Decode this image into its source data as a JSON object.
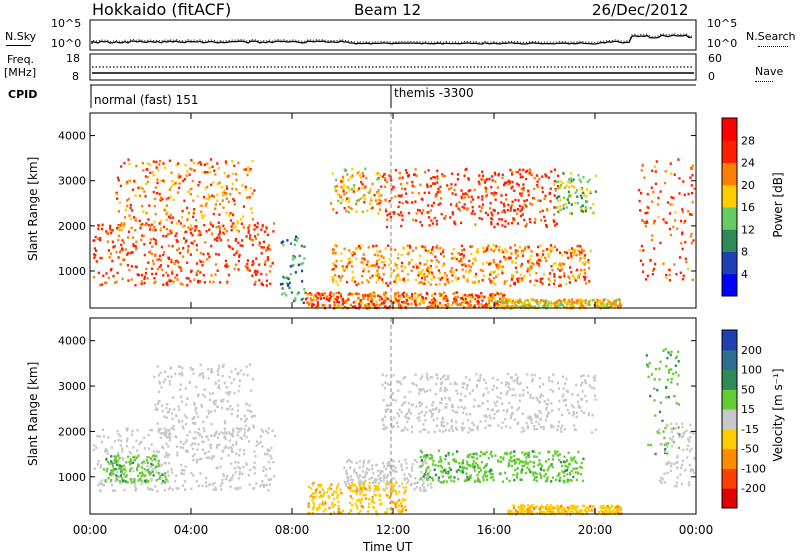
{
  "header": {
    "station": "Hokkaido (fitACF)",
    "beam": "Beam 12",
    "date": "26/Dec/2012"
  },
  "noise_panel": {
    "left_label": "N.Sky",
    "right_label": "N.Search",
    "left_ticks": [
      "10^5",
      "10^0"
    ],
    "right_ticks": [
      "10^5",
      "10^0"
    ]
  },
  "freq_panel": {
    "left_label_line1": "Freq.",
    "left_label_line2": "[MHz]",
    "left_ticks": [
      "18",
      "8"
    ],
    "right_label": "Nave",
    "right_ticks": [
      "60",
      "0"
    ]
  },
  "cpid_panel": {
    "label": "CPID",
    "modes": [
      {
        "text": "normal (fast) 151",
        "start_hour": 0
      },
      {
        "text": "themis -3300",
        "start_hour": 12
      }
    ]
  },
  "power_panel": {
    "ylabel": "Slant Range [km]",
    "yticks": [
      "1000",
      "2000",
      "3000",
      "4000"
    ],
    "colorbar_label": "Power [dB]",
    "colorbar_ticks": [
      "4",
      "8",
      "12",
      "16",
      "20",
      "24",
      "28"
    ],
    "colors": [
      "#0000ff",
      "#1f3fb4",
      "#2e8b57",
      "#66cc66",
      "#ffcc00",
      "#ff8000",
      "#ff2000"
    ]
  },
  "velocity_panel": {
    "ylabel": "Slant Range [km]",
    "yticks": [
      "1000",
      "2000",
      "3000",
      "4000"
    ],
    "colorbar_label": "Velocity [m s⁻¹]",
    "colorbar_ticks": [
      "200",
      "100",
      "50",
      "15",
      "-15",
      "-50",
      "-100",
      "-200"
    ],
    "colors": [
      "#1f3fb4",
      "#2e6e8e",
      "#2e8b57",
      "#66cc33",
      "#c8c8c8",
      "#ffcc00",
      "#ff8c00",
      "#ff4000",
      "#e00000"
    ]
  },
  "x_axis": {
    "ticks": [
      "00:00",
      "04:00",
      "08:00",
      "12:00",
      "16:00",
      "20:00",
      "00:00"
    ],
    "xlabel": "Time UT"
  },
  "chart_data": {
    "type": "heatmap",
    "x_range_hours": [
      0,
      24
    ],
    "y_range_km": [
      180,
      4500
    ],
    "mode_change_hour": 12,
    "power_regions": [
      {
        "t0": 0.1,
        "t1": 7.3,
        "r0": 700,
        "r1": 2100,
        "db": 26
      },
      {
        "t0": 1.0,
        "t1": 6.5,
        "r0": 1900,
        "r1": 3500,
        "db": 22
      },
      {
        "t0": 7.5,
        "t1": 8.5,
        "r0": 300,
        "r1": 1800,
        "db": 10
      },
      {
        "t0": 9.5,
        "t1": 11.5,
        "r0": 2300,
        "r1": 3300,
        "db": 20
      },
      {
        "t0": 11.5,
        "t1": 18.5,
        "r0": 2000,
        "r1": 3300,
        "db": 27
      },
      {
        "t0": 18.3,
        "t1": 20.0,
        "r0": 2300,
        "r1": 3200,
        "db": 14
      },
      {
        "t0": 9.5,
        "t1": 19.8,
        "r0": 700,
        "r1": 1600,
        "db": 22
      },
      {
        "t0": 8.5,
        "t1": 16.5,
        "r0": 200,
        "r1": 550,
        "db": 24
      },
      {
        "t0": 21.7,
        "t1": 23.9,
        "r0": 800,
        "r1": 3500,
        "db": 25
      },
      {
        "t0": 16.0,
        "t1": 21.0,
        "r0": 200,
        "r1": 400,
        "db": 18
      }
    ],
    "velocity_regions": [
      {
        "t0": 0.1,
        "t1": 7.3,
        "r0": 700,
        "r1": 2100,
        "v": 0
      },
      {
        "t0": 2.5,
        "t1": 6.5,
        "r0": 1900,
        "r1": 3500,
        "v": 0
      },
      {
        "t0": 11.5,
        "t1": 20.0,
        "r0": 2000,
        "r1": 3300,
        "v": 0
      },
      {
        "t0": 10.0,
        "t1": 13.5,
        "r0": 700,
        "r1": 1400,
        "v": 0
      },
      {
        "t0": 8.5,
        "t1": 12.5,
        "r0": 200,
        "r1": 900,
        "v": -40
      },
      {
        "t0": 13.0,
        "t1": 19.5,
        "r0": 900,
        "r1": 1600,
        "v": 40
      },
      {
        "t0": 22.0,
        "t1": 23.3,
        "r0": 1500,
        "r1": 3900,
        "v": 40
      },
      {
        "t0": 22.5,
        "t1": 23.9,
        "r0": 800,
        "r1": 2200,
        "v": 0
      },
      {
        "t0": 16.5,
        "t1": 21.0,
        "r0": 200,
        "r1": 400,
        "v": -40
      },
      {
        "t0": 0.5,
        "t1": 3.0,
        "r0": 900,
        "r1": 1500,
        "v": 40
      }
    ]
  }
}
